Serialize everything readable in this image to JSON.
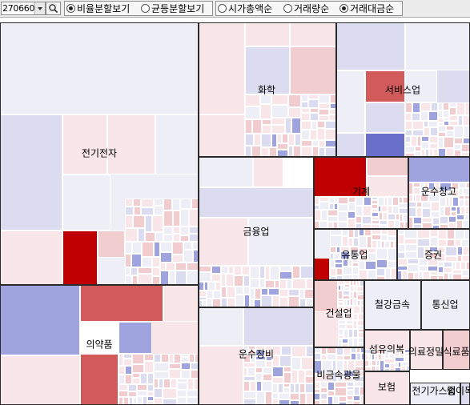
{
  "toolbar": {
    "date_value": "270660",
    "dropdown_icon": "chevron-down-icon",
    "search_icon": "search-icon",
    "size_modes": [
      {
        "label": "비율분할보기",
        "selected": true
      },
      {
        "label": "균등분할보기",
        "selected": false
      }
    ],
    "sort_modes": [
      {
        "label": "시가총액순",
        "selected": false
      },
      {
        "label": "거래량순",
        "selected": false
      },
      {
        "label": "거래대금순",
        "selected": true
      }
    ]
  },
  "colors": {
    "strong_red": "#c00000",
    "red": "#d35a5a",
    "pink": "#f1cdd0",
    "light_pink": "#f9e6e8",
    "neutral": "#eeeef6",
    "light_blue": "#dcdcf0",
    "blue": "#a0a4de",
    "strong_blue": "#6b6fcc"
  },
  "treemap": {
    "sectors": [
      {
        "name": "전기전자"
      },
      {
        "name": "의약품"
      },
      {
        "name": "화학"
      },
      {
        "name": "서비스업"
      },
      {
        "name": "금융업"
      },
      {
        "name": "기계"
      },
      {
        "name": "운수창고"
      },
      {
        "name": "유통업"
      },
      {
        "name": "증권"
      },
      {
        "name": "운수장비"
      },
      {
        "name": "건설업"
      },
      {
        "name": "철강금속"
      },
      {
        "name": "통신업"
      },
      {
        "name": "섬유의복"
      },
      {
        "name": "의료정밀"
      },
      {
        "name": "식료품"
      },
      {
        "name": "비금속광물"
      },
      {
        "name": "보험"
      },
      {
        "name": "전기가스업"
      },
      {
        "name": "종이목재"
      }
    ]
  }
}
